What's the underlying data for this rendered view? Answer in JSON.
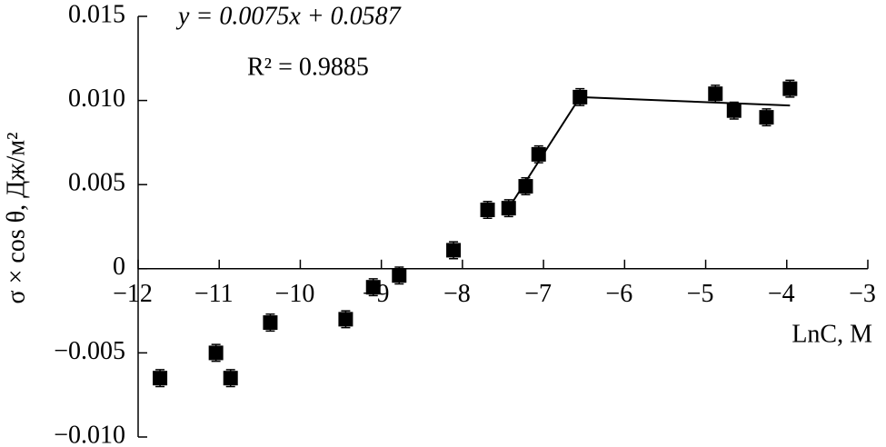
{
  "chart_data": {
    "type": "scatter",
    "annotations": [
      "y = 0.0075x + 0.0587",
      "R² = 0.9885"
    ],
    "x_label": "LnC, M",
    "y_label": "σ × cos θ, Дж/м²",
    "x": [
      -11.73,
      -11.04,
      -10.86,
      -10.37,
      -9.44,
      -9.1,
      -8.78,
      -8.11,
      -7.69,
      -7.43,
      -7.22,
      -7.06,
      -6.55,
      -4.88,
      -4.65,
      -4.25,
      -3.96
    ],
    "values": [
      -0.0065,
      -0.005,
      -0.0065,
      -0.0032,
      -0.003,
      -0.0011,
      -0.0004,
      0.0011,
      0.0035,
      0.0036,
      0.0049,
      0.0068,
      0.0102,
      0.0104,
      0.0094,
      0.009,
      0.0107
    ],
    "yerr": 0.0005,
    "color": "#000000",
    "fit_lines": [
      {
        "x": [
          -7.43,
          -6.55
        ],
        "values": [
          0.0036,
          0.0102
        ]
      },
      {
        "x": [
          -6.55,
          -3.96
        ],
        "values": [
          0.0102,
          0.0097
        ]
      }
    ],
    "xlim": [
      -12,
      -3
    ],
    "ylim": [
      -0.01,
      0.015
    ],
    "xticks": [
      {
        "value": -12,
        "label": "−12"
      },
      {
        "value": -11,
        "label": "−11"
      },
      {
        "value": -10,
        "label": "−10"
      },
      {
        "value": -9,
        "label": "−9"
      },
      {
        "value": -8,
        "label": "−8"
      },
      {
        "value": -7,
        "label": "−7"
      },
      {
        "value": -6,
        "label": "−6"
      },
      {
        "value": -5,
        "label": "−5"
      },
      {
        "value": -4,
        "label": "−4"
      },
      {
        "value": -3,
        "label": "−3"
      }
    ],
    "yticks": [
      {
        "value": -0.01,
        "label": "−0.010"
      },
      {
        "value": -0.005,
        "label": "−0.005"
      },
      0,
      {
        "value": 0.005,
        "label": "0.005"
      },
      {
        "value": 0.01,
        "label": "0.010"
      },
      0.015
    ]
  }
}
